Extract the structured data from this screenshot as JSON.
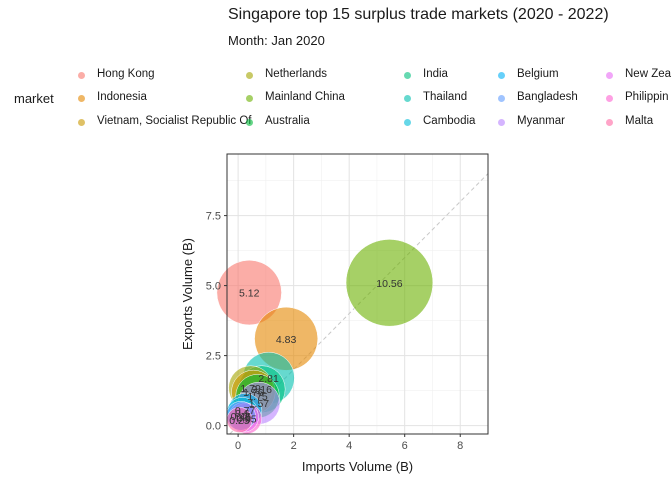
{
  "title": "Singapore top 15 surplus trade markets (2020 - 2022)",
  "subtitle": "Month: Jan 2020",
  "legend": {
    "title": "market",
    "items": [
      {
        "name": "Hong Kong",
        "color": "#F8766D"
      },
      {
        "name": "Indonesia",
        "color": "#E58700"
      },
      {
        "name": "Vietnam, Socialist Republic Of",
        "color": "#C99800"
      },
      {
        "name": "Netherlands",
        "color": "#A3A500"
      },
      {
        "name": "Mainland China",
        "color": "#6BB100"
      },
      {
        "name": "Australia",
        "color": "#00BA38"
      },
      {
        "name": "India",
        "color": "#00BF7D"
      },
      {
        "name": "Thailand",
        "color": "#00C0AF"
      },
      {
        "name": "Cambodia",
        "color": "#00BCD8"
      },
      {
        "name": "Belgium",
        "color": "#00B0F6"
      },
      {
        "name": "Bangladesh",
        "color": "#619CFF"
      },
      {
        "name": "Myanmar",
        "color": "#B983FF"
      },
      {
        "name": "New Zea",
        "color": "#E76BF3"
      },
      {
        "name": "Philippin",
        "color": "#FD61D1"
      },
      {
        "name": "Malta",
        "color": "#FF67A4"
      }
    ]
  },
  "chart_data": {
    "type": "scatter",
    "xlabel": "Imports Volume (B)",
    "ylabel": "Exports Volume (B)",
    "xlim": [
      -0.4,
      9
    ],
    "ylim": [
      -0.3,
      9.7
    ],
    "xticks": [
      0,
      2,
      4,
      6,
      8
    ],
    "yticks": [
      0.0,
      2.5,
      5.0,
      7.5
    ],
    "ytick_labels": [
      "0.0",
      "2.5",
      "5.0",
      "7.5"
    ],
    "xtick_labels": [
      "0",
      "2",
      "4",
      "6",
      "8"
    ],
    "reference_line": "y = x (dashed)",
    "grid": true,
    "points": [
      {
        "market": "Mainland China",
        "x": 5.45,
        "y": 5.1,
        "label": "10.56",
        "total": 10.56
      },
      {
        "market": "Hong Kong",
        "x": 0.4,
        "y": 4.75,
        "label": "5.12",
        "total": 5.12
      },
      {
        "market": "Indonesia",
        "x": 1.73,
        "y": 3.1,
        "label": "4.83",
        "total": 4.83
      },
      {
        "market": "Thailand",
        "x": 1.1,
        "y": 1.7,
        "label": "2.81",
        "total": 2.81
      },
      {
        "market": "Netherlands",
        "x": 0.45,
        "y": 1.35,
        "label": "1.79",
        "total": 1.79
      },
      {
        "market": "Vietnam, Socialist Republic Of",
        "x": 0.55,
        "y": 1.2,
        "label": "1.76",
        "total": 1.76
      },
      {
        "market": "India",
        "x": 0.85,
        "y": 1.3,
        "label": "2.16",
        "total": 2.16
      },
      {
        "market": "Australia",
        "x": 0.7,
        "y": 1.05,
        "label": "1.75",
        "total": 1.75
      },
      {
        "market": "Myanmar",
        "x": 0.75,
        "y": 0.8,
        "label": "1.57",
        "total": 1.57
      },
      {
        "market": "Belgium",
        "x": 0.25,
        "y": 0.55,
        "label": "0.77",
        "total": 0.77
      },
      {
        "market": "Bangladesh",
        "x": 0.1,
        "y": 0.35,
        "label": "0.45",
        "total": 0.45
      },
      {
        "market": "Cambodia",
        "x": 0.15,
        "y": 0.45,
        "label": "0.6",
        "total": 0.6
      },
      {
        "market": "New Zea",
        "x": 0.2,
        "y": 0.3,
        "label": "0.5",
        "total": 0.5
      },
      {
        "market": "Philippin",
        "x": 0.3,
        "y": 0.25,
        "label": "0.55",
        "total": 0.55
      },
      {
        "market": "Malta",
        "x": 0.05,
        "y": 0.2,
        "label": "0.25",
        "total": 0.25
      }
    ]
  }
}
